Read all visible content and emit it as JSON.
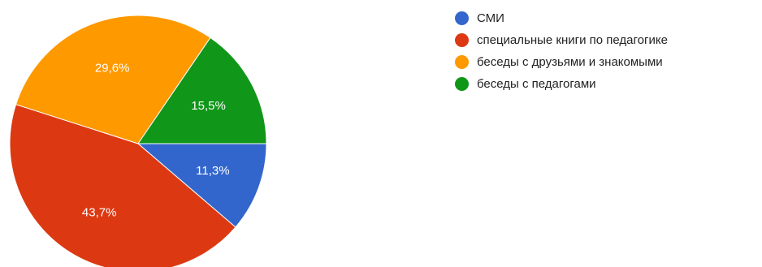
{
  "chart_data": {
    "type": "pie",
    "start_angle_deg": 0,
    "direction": "clockwise",
    "slices": [
      {
        "label": "СМИ",
        "value": 11.3,
        "value_label": "11,3%",
        "color": "#3366cc"
      },
      {
        "label": "специальные книги по педагогике",
        "value": 43.7,
        "value_label": "43,7%",
        "color": "#dc3912"
      },
      {
        "label": "беседы с друзьями и знакомыми",
        "value": 29.6,
        "value_label": "29,6%",
        "color": "#ff9900"
      },
      {
        "label": "беседы с педагогами",
        "value": 15.5,
        "value_label": "15,5%",
        "color": "#109618"
      }
    ],
    "legend_position": "right"
  }
}
